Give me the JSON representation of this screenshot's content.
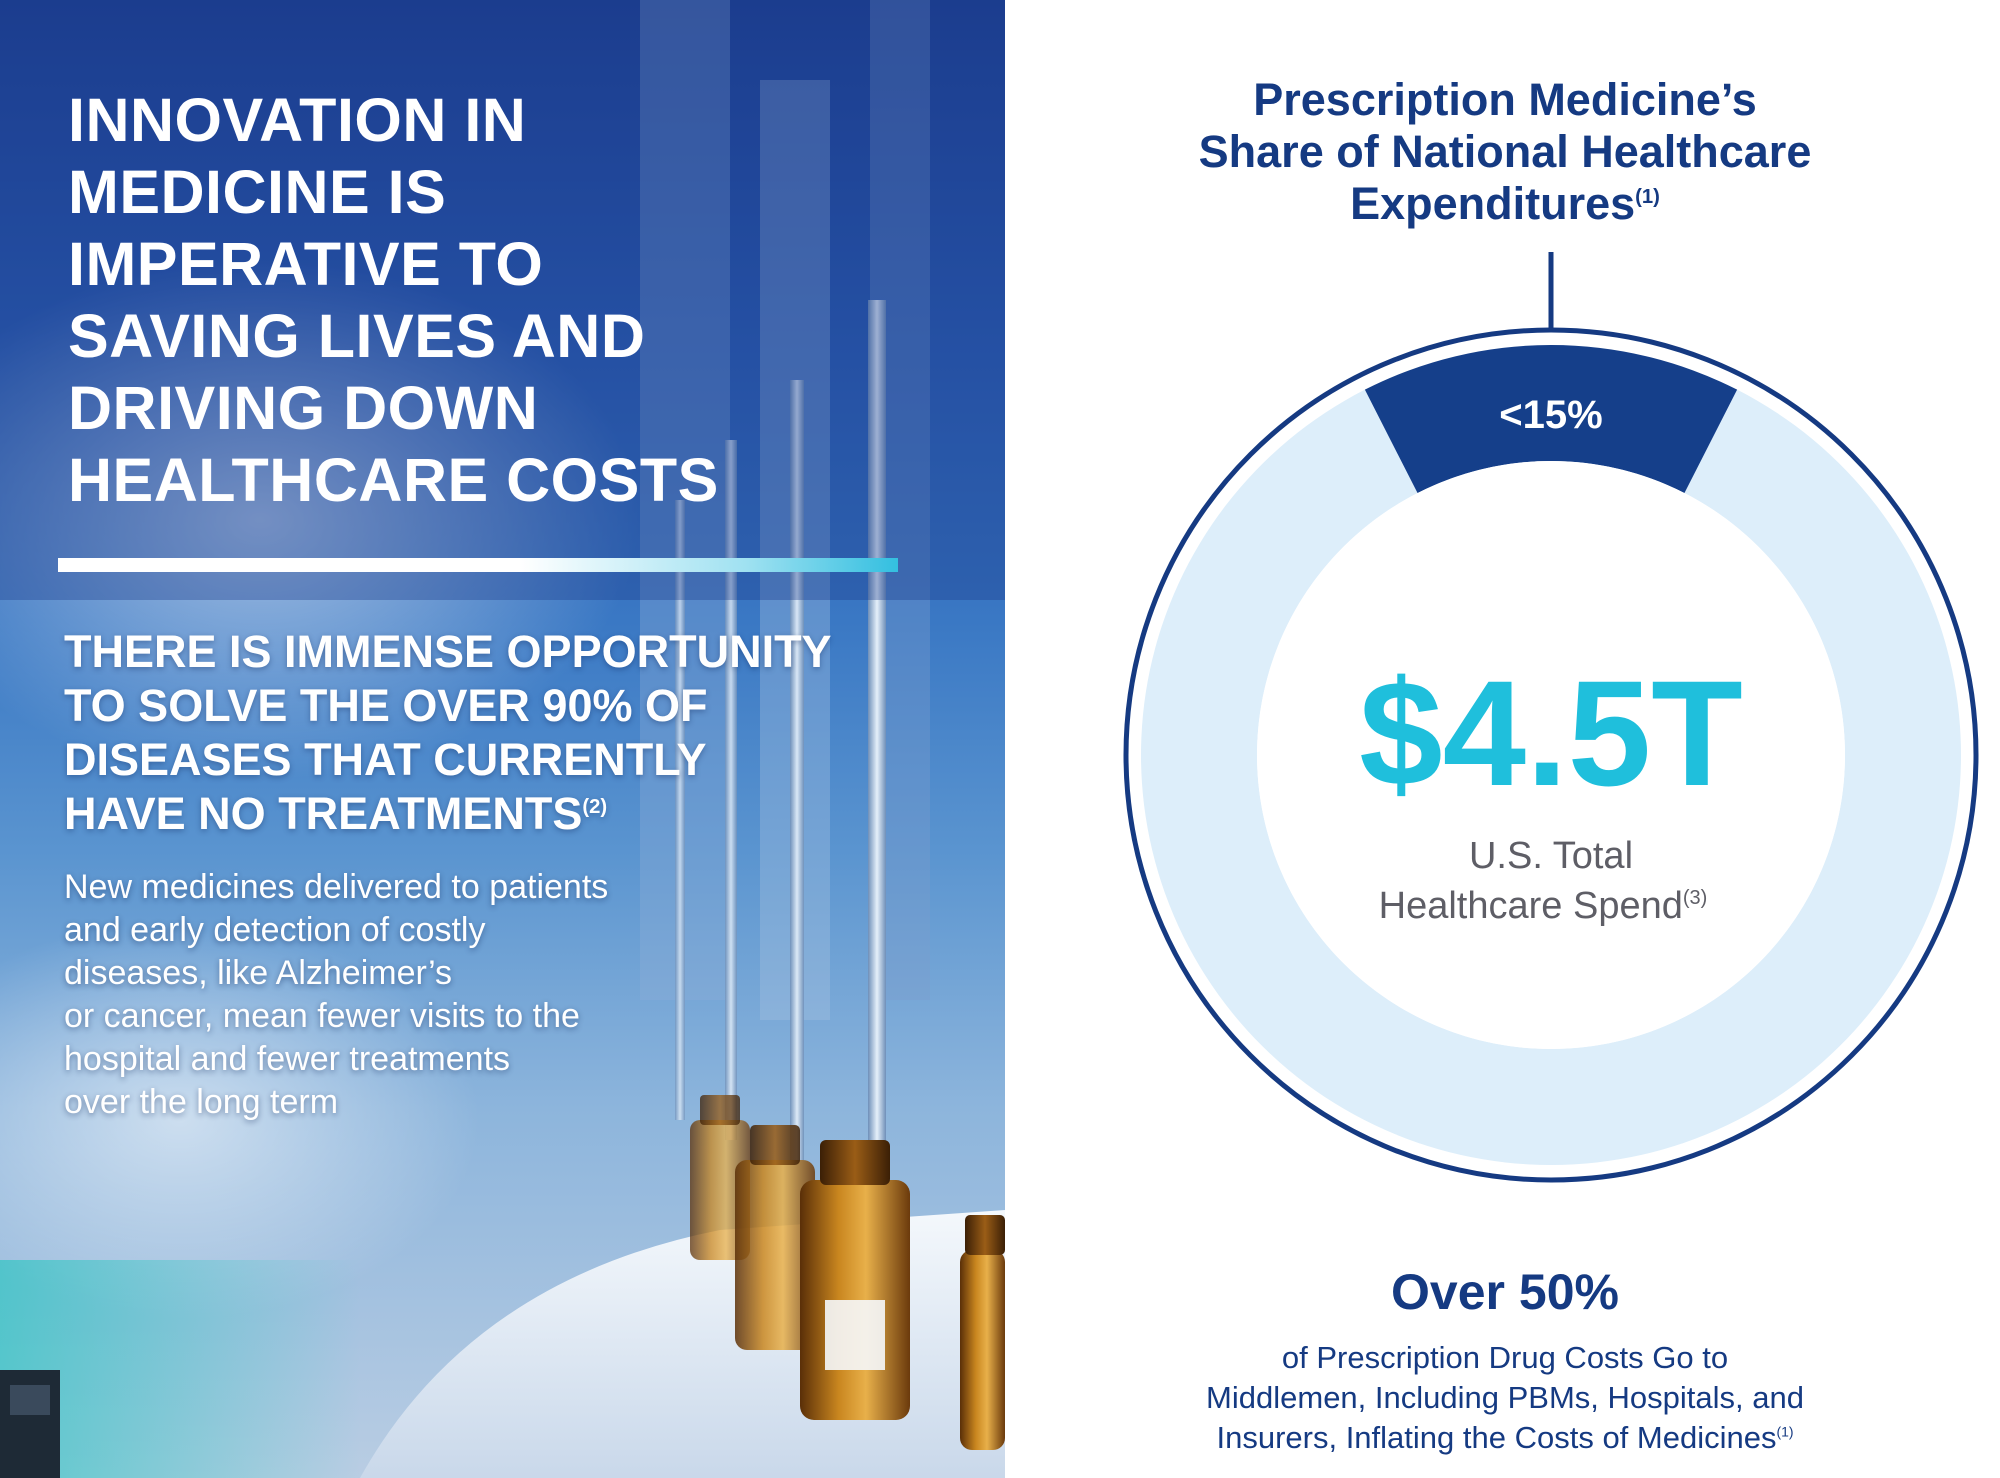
{
  "left_panel": {
    "headline": "INNOVATION IN\nMEDICINE IS\nIMPERATIVE TO\nSAVING LIVES AND\nDRIVING DOWN\nHEALTHCARE COSTS",
    "subheadline": "THERE IS IMMENSE OPPORTUNITY\nTO SOLVE THE OVER 90% OF\nDISEASES THAT CURRENTLY\nHAVE NO TREATMENTS",
    "subheadline_ref": "(2)",
    "body": "New medicines delivered to patients\nand early detection of costly\ndiseases, like Alzheimer’s\nor cancer, mean fewer visits to the\nhospital and fewer treatments\nover the long term",
    "photo_subject": "amber-medicine-vials-on-production-line"
  },
  "chart_data": {
    "type": "pie",
    "title": "Prescription Medicine’s\nShare of National Healthcare\nExpenditures",
    "title_ref": "(1)",
    "slices": [
      {
        "label": "<15%",
        "value": 15,
        "color": "#153f8a"
      },
      {
        "label": "",
        "value": 85,
        "color": "#ddeefa"
      }
    ],
    "center_value": "$4.5T",
    "center_label": "U.S. Total\nHealthcare Spend",
    "center_label_ref": "(3)",
    "ring_color": "#153a82",
    "center_value_color": "#1fbfdc"
  },
  "footer": {
    "bold": "Over 50%",
    "text": "of Prescription Drug Costs Go to\nMiddlemen, Including PBMs, Hospitals, and\nInsurers, Inflating the Costs of Medicines",
    "ref": "(1)"
  }
}
